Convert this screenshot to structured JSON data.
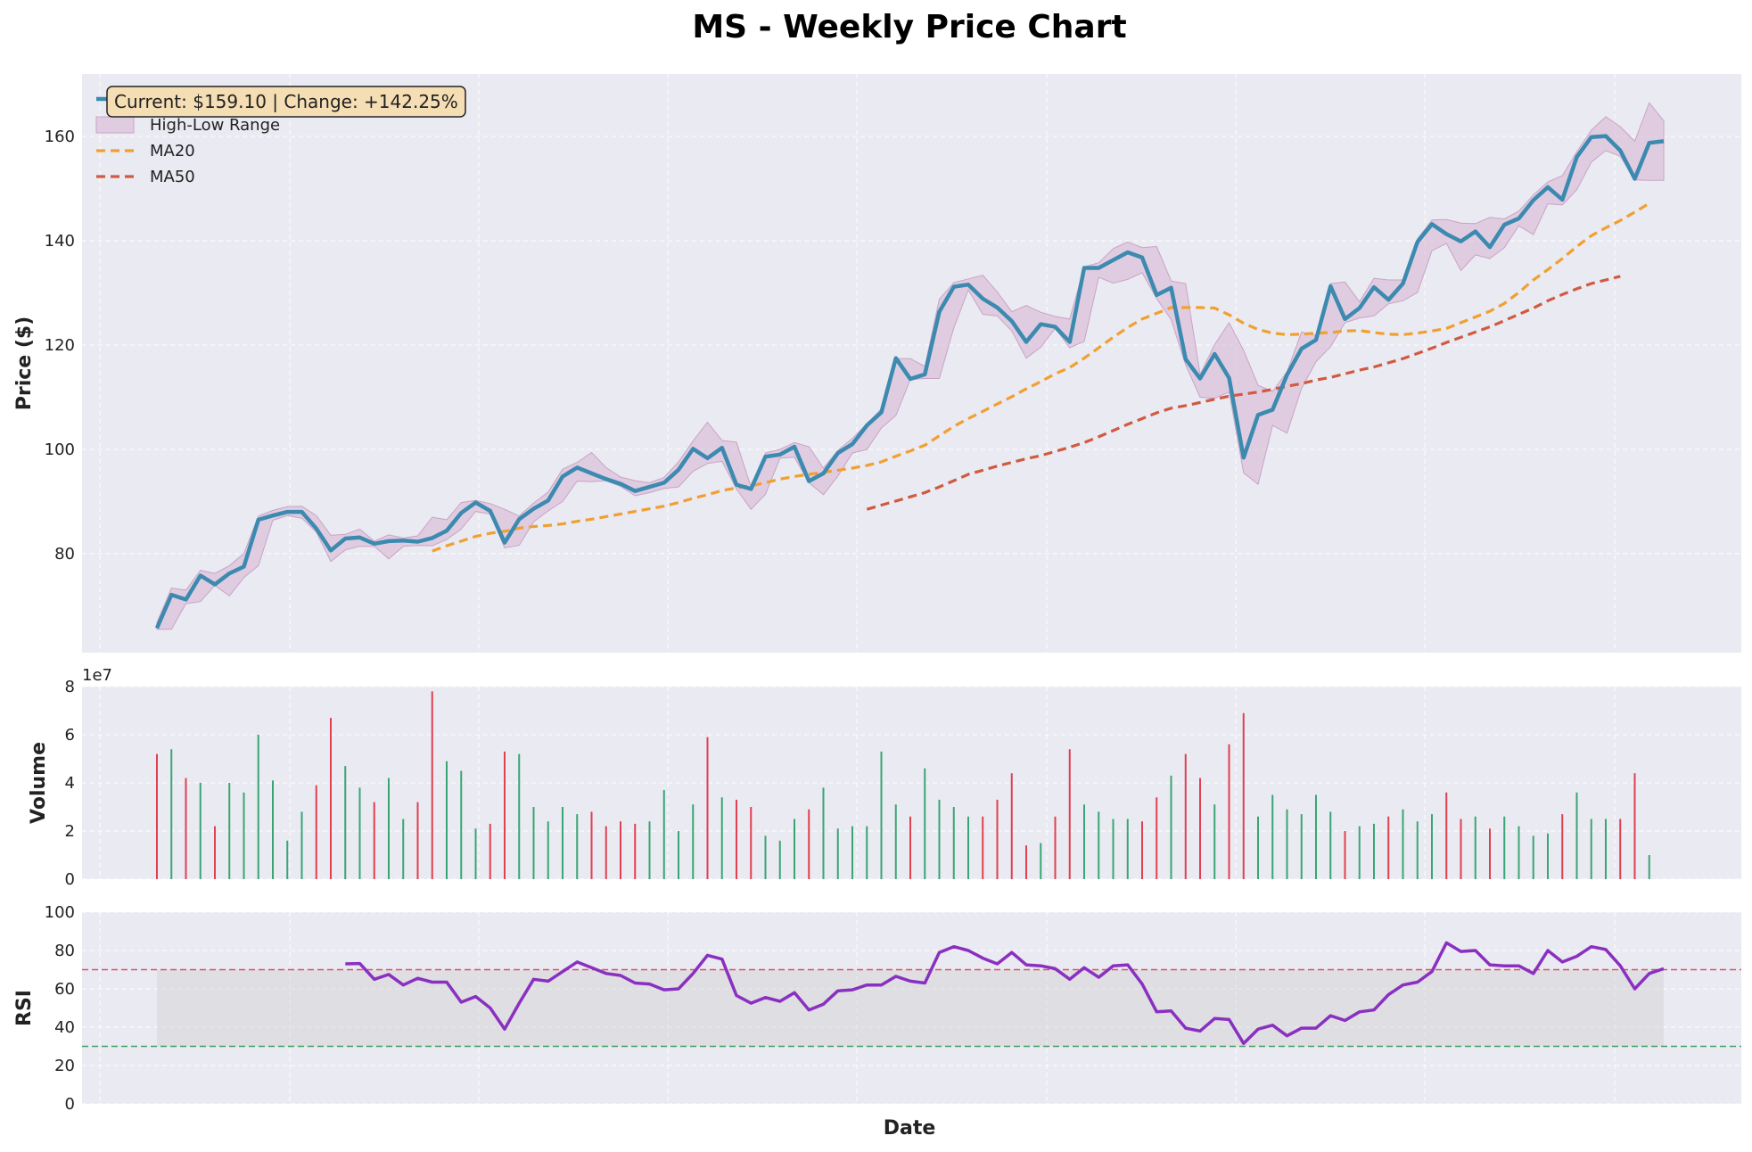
{
  "title": "MS - Weekly Price Chart",
  "annotation": "Current: $159.10 | Change: +142.25%",
  "colors": {
    "panel_bg": "#eaeaf2",
    "close": "#3c8ab0",
    "range": "#d9b8d3",
    "ma20": "#f0a030",
    "ma50": "#d05a40",
    "vol_up": "#3aa574",
    "vol_down": "#e04050",
    "rsi": "#8a30c0",
    "overbought": "#e05060",
    "oversold": "#40a060"
  },
  "chart_data": [
    {
      "type": "line",
      "panel": "price",
      "title": "MS - Weekly Price Chart",
      "xlabel": "",
      "ylabel": "Price ($)",
      "ylim": [
        61,
        172
      ],
      "yticks": [
        80,
        100,
        120,
        140,
        160
      ],
      "grid": true,
      "legend": "top-left",
      "legend_entries": [
        "Close Price",
        "High-Low Range",
        "MA20",
        "MA50"
      ],
      "series": [
        {
          "name": "Close Price",
          "values": [
            65.7,
            72.1,
            71.2,
            75.8,
            74.1,
            76.2,
            77.5,
            86.5,
            87.3,
            88.0,
            88.0,
            84.8,
            80.6,
            82.9,
            83.1,
            81.9,
            82.4,
            82.5,
            82.3,
            83.0,
            84.4,
            87.8,
            89.8,
            88.2,
            82.1,
            86.6,
            88.6,
            90.2,
            94.8,
            96.5,
            95.4,
            94.3,
            93.4,
            92.0,
            92.8,
            93.6,
            96.1,
            100.1,
            98.3,
            100.3,
            93.2,
            92.4,
            98.6,
            99.0,
            100.5,
            93.9,
            95.4,
            99.3,
            101.0,
            104.6,
            107.1,
            117.5,
            113.5,
            114.4,
            126.4,
            131.2,
            131.6,
            128.9,
            127.2,
            124.6,
            120.6,
            124.0,
            123.5,
            120.6,
            134.8,
            134.8,
            136.3,
            137.8,
            136.8,
            129.6,
            131.0,
            117.3,
            113.6,
            118.3,
            113.7,
            98.4,
            106.6,
            107.6,
            114.3,
            119.3,
            121.0,
            131.3,
            125.0,
            127.1,
            131.1,
            128.7,
            131.8,
            139.8,
            143.2,
            141.3,
            139.9,
            141.8,
            138.8,
            143.1,
            144.3,
            147.8,
            150.3,
            147.9,
            156.1,
            159.9,
            160.1,
            157.3,
            151.9,
            158.8,
            159.1
          ]
        },
        {
          "name": "High-Low Range high",
          "values": [
            66.8,
            73.4,
            73.0,
            76.8,
            76.2,
            77.7,
            80.0,
            87.2,
            88.3,
            89.0,
            89.1,
            87.3,
            83.5,
            83.7,
            84.7,
            82.4,
            83.6,
            83.0,
            83.4,
            87.0,
            86.5,
            89.8,
            90.2,
            89.6,
            88.5,
            87.2,
            89.7,
            91.8,
            96.2,
            97.5,
            99.4,
            96.5,
            94.7,
            94.0,
            93.6,
            94.6,
            97.6,
            101.6,
            105.2,
            101.7,
            101.4,
            92.8,
            99.3,
            100.0,
            101.3,
            100.5,
            96.4,
            99.8,
            102.1,
            104.9,
            107.8,
            117.4,
            117.4,
            115.9,
            128.8,
            132.0,
            132.7,
            133.4,
            130.2,
            126.4,
            127.6,
            126.3,
            125.5,
            125.0,
            135.0,
            135.8,
            138.5,
            139.8,
            138.7,
            138.9,
            132.3,
            131.8,
            114.4,
            120.1,
            124.3,
            119.0,
            112.3,
            111.1,
            114.9,
            122.5,
            121.8,
            131.8,
            132.1,
            128.3,
            132.8,
            132.5,
            132.5,
            140.4,
            144.0,
            144.1,
            143.4,
            143.3,
            144.5,
            144.2,
            145.7,
            148.8,
            151.3,
            152.5,
            157.1,
            161.2,
            163.8,
            161.9,
            159.1,
            166.5,
            163.0
          ]
        },
        {
          "name": "High-Low Range low",
          "values": [
            65.5,
            65.5,
            70.4,
            70.8,
            73.9,
            71.9,
            75.4,
            77.7,
            86.4,
            87.3,
            86.8,
            84.1,
            78.5,
            80.7,
            81.4,
            81.4,
            79.0,
            81.4,
            81.6,
            81.5,
            82.7,
            84.7,
            88.1,
            87.6,
            81.1,
            81.6,
            86.1,
            88.2,
            90.0,
            93.9,
            93.8,
            94.0,
            92.9,
            91.1,
            91.7,
            92.5,
            92.8,
            95.8,
            97.3,
            97.7,
            92.4,
            88.5,
            91.4,
            98.3,
            98.5,
            93.6,
            91.3,
            94.9,
            99.3,
            100.0,
            104.1,
            106.5,
            113.4,
            113.6,
            113.6,
            123.3,
            130.6,
            125.9,
            125.6,
            122.7,
            117.5,
            119.6,
            123.2,
            119.5,
            120.7,
            133.0,
            131.9,
            132.6,
            133.9,
            128.9,
            124.9,
            116.2,
            110.0,
            109.8,
            111.0,
            95.5,
            93.3,
            104.6,
            103.1,
            111.7,
            116.8,
            119.7,
            124.3,
            125.2,
            125.6,
            127.9,
            128.5,
            130.1,
            138.1,
            139.5,
            134.3,
            137.3,
            136.6,
            138.7,
            142.9,
            141.2,
            147.1,
            146.9,
            149.8,
            155.1,
            157.3,
            156.2,
            151.7,
            151.6,
            151.6
          ]
        },
        {
          "name": "MA20",
          "start_index": 19,
          "values": [
            80.5,
            81.5,
            82.4,
            83.3,
            83.9,
            84.3,
            84.9,
            85.2,
            85.4,
            85.7,
            86.2,
            86.6,
            87.1,
            87.6,
            88.1,
            88.6,
            89.1,
            89.8,
            90.6,
            91.3,
            92.1,
            92.6,
            93.0,
            93.6,
            94.3,
            94.8,
            95.2,
            95.6,
            96.0,
            96.4,
            96.9,
            97.6,
            98.7,
            99.7,
            100.8,
            102.6,
            104.4,
            105.9,
            107.3,
            108.7,
            110.1,
            111.6,
            113.0,
            114.5,
            115.7,
            117.5,
            119.5,
            121.5,
            123.4,
            125.0,
            126.1,
            127.2,
            127.2,
            127.2,
            127.1,
            125.8,
            124.2,
            123.0,
            122.3,
            122.0,
            122.1,
            122.3,
            122.4,
            122.7,
            122.8,
            122.4,
            122.1,
            122.0,
            122.3,
            122.7,
            123.2,
            124.3,
            125.4,
            126.5,
            128.0,
            130.1,
            132.5,
            134.5,
            136.6,
            138.9,
            141.0,
            142.5,
            143.9,
            145.5,
            147.2
          ]
        },
        {
          "name": "MA50",
          "start_index": 49,
          "values": [
            88.5,
            89.3,
            90.1,
            90.9,
            91.7,
            92.8,
            94.0,
            95.2,
            96.0,
            96.8,
            97.5,
            98.2,
            98.8,
            99.6,
            100.4,
            101.3,
            102.4,
            103.6,
            104.8,
            105.9,
            107.0,
            107.9,
            108.4,
            109.0,
            109.6,
            110.2,
            110.6,
            111.0,
            111.5,
            112.1,
            112.6,
            113.3,
            113.8,
            114.5,
            115.2,
            115.8,
            116.6,
            117.4,
            118.4,
            119.4,
            120.5,
            121.5,
            122.5,
            123.5,
            124.7,
            125.9,
            127.1,
            128.5,
            129.7,
            130.8,
            131.8,
            132.5,
            133.2
          ]
        }
      ]
    },
    {
      "type": "bar",
      "panel": "volume",
      "ylabel": "Volume",
      "offset_label": "1e7",
      "ylim": [
        0,
        8
      ],
      "yticks": [
        0,
        2,
        4,
        6,
        8
      ],
      "grid": true,
      "series": [
        {
          "name": "Volume",
          "values": [
            5.2,
            5.4,
            4.2,
            4.0,
            2.2,
            4.0,
            3.6,
            6.0,
            4.1,
            1.6,
            2.8,
            3.9,
            6.7,
            4.7,
            3.8,
            3.2,
            4.2,
            2.5,
            3.2,
            7.8,
            4.9,
            4.5,
            2.1,
            2.3,
            5.3,
            5.2,
            3.0,
            2.4,
            3.0,
            2.7,
            2.8,
            2.2,
            2.4,
            2.3,
            2.4,
            3.7,
            2.0,
            3.1,
            5.9,
            3.4,
            3.3,
            3.0,
            1.8,
            1.6,
            2.5,
            2.9,
            3.8,
            2.1,
            2.2,
            2.2,
            5.3,
            3.1,
            2.6,
            4.6,
            3.3,
            3.0,
            2.6,
            2.6,
            3.3,
            4.4,
            1.4,
            1.5,
            2.6,
            5.4,
            3.1,
            2.8,
            2.5,
            2.5,
            2.4,
            3.4,
            4.3,
            5.2,
            4.2,
            3.1,
            5.6,
            6.9,
            2.6,
            3.5,
            2.9,
            2.7,
            3.5,
            2.8,
            2.0,
            2.2,
            2.3,
            2.6,
            2.9,
            2.4,
            2.7,
            3.6,
            2.5,
            2.6,
            2.1,
            2.6,
            2.2,
            1.8,
            1.9,
            2.7,
            3.6,
            2.5,
            2.5,
            2.5,
            4.4,
            1.0
          ]
        }
      ],
      "up": [
        false,
        true,
        false,
        true,
        false,
        true,
        true,
        true,
        true,
        true,
        true,
        false,
        false,
        true,
        true,
        false,
        true,
        true,
        false,
        false,
        true,
        true,
        true,
        false,
        false,
        true,
        true,
        true,
        true,
        true,
        false,
        false,
        false,
        false,
        true,
        true,
        true,
        true,
        false,
        true,
        false,
        false,
        true,
        true,
        true,
        false,
        true,
        true,
        true,
        true,
        true,
        true,
        false,
        true,
        true,
        true,
        true,
        false,
        false,
        false,
        false,
        true,
        false,
        false,
        true,
        true,
        true,
        true,
        false,
        false,
        true,
        false,
        false,
        true,
        false,
        false,
        true,
        true,
        true,
        true,
        true,
        true,
        false,
        true,
        true,
        false,
        true,
        true,
        true,
        false,
        false,
        true,
        false,
        true,
        true,
        true,
        true,
        false,
        true,
        true,
        true,
        false,
        false,
        true,
        false
      ]
    },
    {
      "type": "line",
      "panel": "rsi",
      "xlabel": "Date",
      "ylabel": "RSI",
      "ylim": [
        0,
        100
      ],
      "yticks": [
        0,
        20,
        40,
        60,
        80,
        100
      ],
      "grid": true,
      "reference_lines": [
        70,
        30
      ],
      "series": [
        {
          "name": "RSI",
          "start_index": 13,
          "values": [
            73.0,
            73.2,
            65.0,
            67.5,
            62.0,
            65.5,
            63.5,
            63.5,
            53.0,
            56.0,
            50.0,
            39.0,
            52.5,
            65.0,
            64.0,
            69.0,
            74.0,
            71.0,
            68.0,
            67.0,
            63.0,
            62.5,
            59.5,
            60.0,
            68.0,
            77.5,
            75.5,
            56.5,
            52.5,
            55.5,
            53.5,
            58.0,
            49.0,
            52.0,
            59.0,
            59.5,
            62.0,
            62.0,
            66.5,
            64.0,
            63.0,
            79.0,
            82.0,
            80.0,
            76.0,
            73.0,
            79.0,
            72.5,
            72.0,
            70.5,
            65.0,
            71.0,
            66.0,
            72.0,
            72.5,
            62.5,
            48.0,
            48.5,
            39.5,
            38.0,
            44.5,
            44.0,
            31.5,
            39.0,
            41.0,
            35.5,
            39.5,
            39.5,
            46.0,
            43.5,
            48.0,
            49.0,
            57.0,
            62.0,
            63.5,
            69.0,
            84.0,
            79.5,
            80.0,
            72.5,
            72.0,
            72.0,
            68.0,
            80.0,
            74.0,
            77.0,
            82.0,
            80.5,
            72.0,
            60.0,
            68.0,
            70.5
          ]
        }
      ]
    }
  ]
}
